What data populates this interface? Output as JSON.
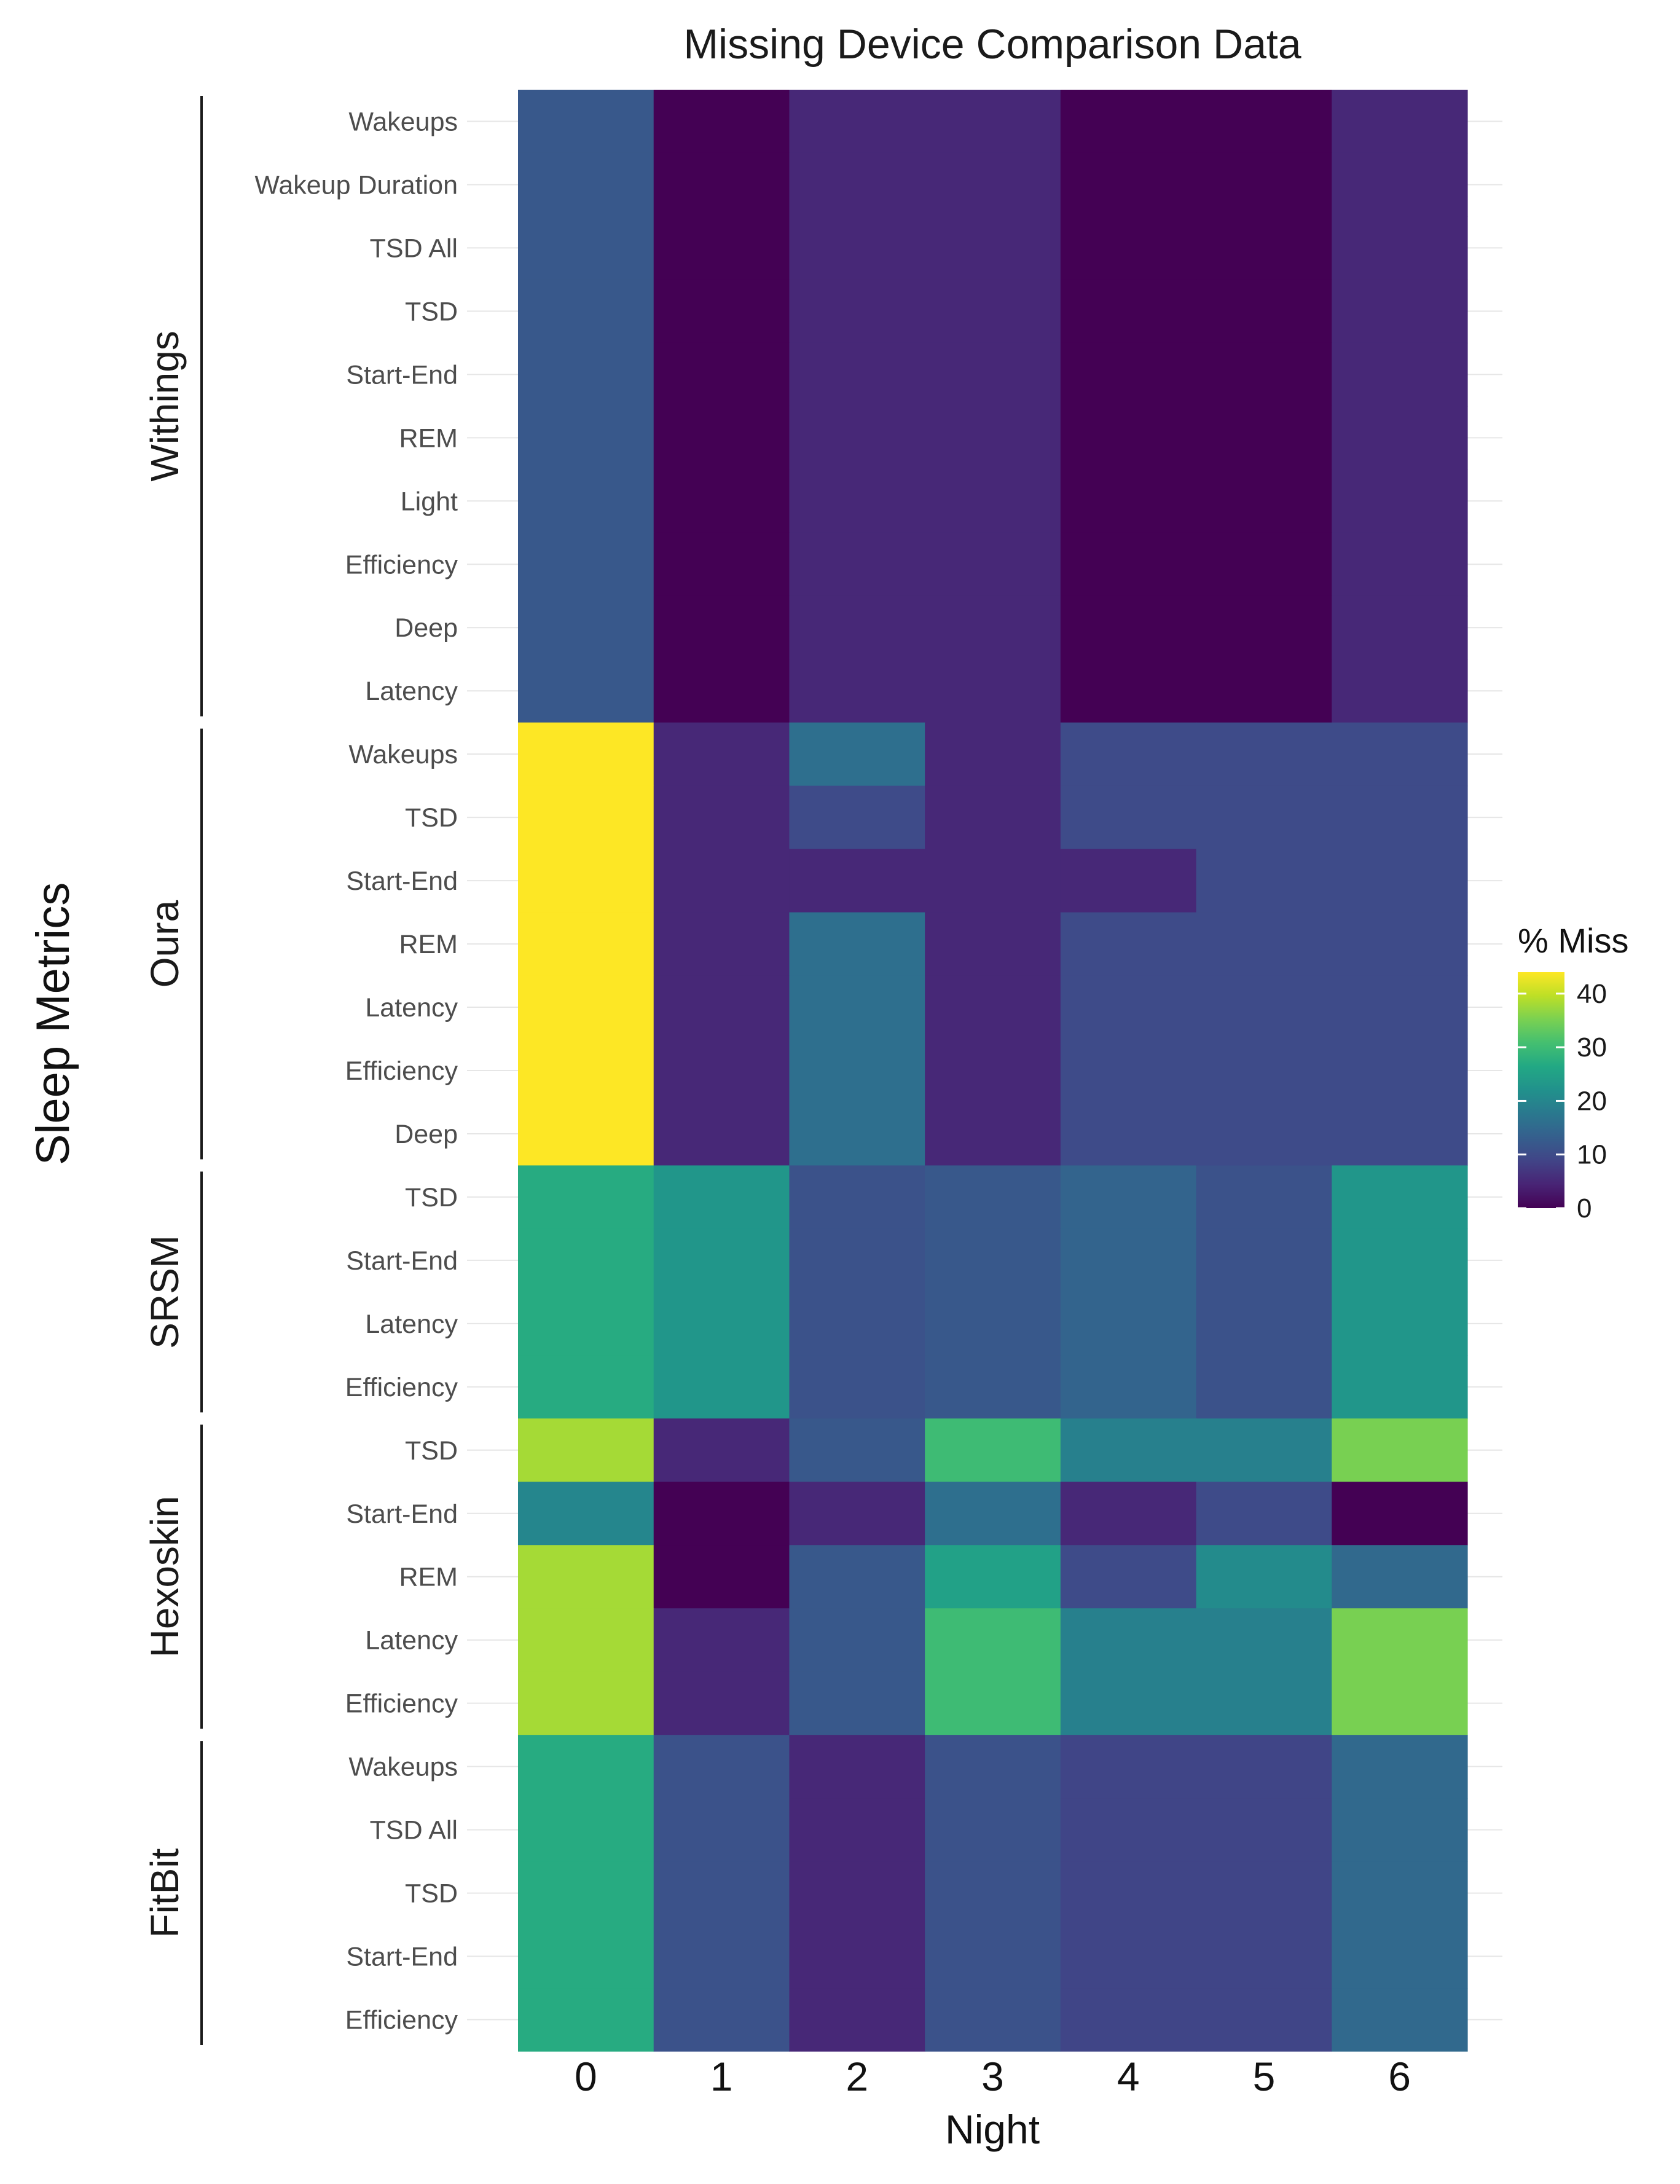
{
  "chart_data": {
    "type": "heatmap",
    "title": "Missing Device Comparison Data",
    "xlabel": "Night",
    "ylabel": "Sleep Metrics",
    "x_categories": [
      "0",
      "1",
      "2",
      "3",
      "4",
      "5",
      "6"
    ],
    "legend": {
      "title": "% Miss",
      "ticks": [
        0,
        10,
        20,
        30,
        40
      ],
      "range": [
        0,
        44
      ],
      "colorscale": "viridis",
      "position": "right"
    },
    "groups": [
      {
        "name": "Withings",
        "rows": [
          {
            "label": "Wakeups",
            "values": [
              12,
              0,
              5,
              5,
              0,
              0,
              5
            ]
          },
          {
            "label": "Wakeup Duration",
            "values": [
              12,
              0,
              5,
              5,
              0,
              0,
              5
            ]
          },
          {
            "label": "TSD All",
            "values": [
              12,
              0,
              5,
              5,
              0,
              0,
              5
            ]
          },
          {
            "label": "TSD",
            "values": [
              12,
              0,
              5,
              5,
              0,
              0,
              5
            ]
          },
          {
            "label": "Start-End",
            "values": [
              12,
              0,
              5,
              5,
              0,
              0,
              5
            ]
          },
          {
            "label": "REM",
            "values": [
              12,
              0,
              5,
              5,
              0,
              0,
              5
            ]
          },
          {
            "label": "Light",
            "values": [
              12,
              0,
              5,
              5,
              0,
              0,
              5
            ]
          },
          {
            "label": "Efficiency",
            "values": [
              12,
              0,
              5,
              5,
              0,
              0,
              5
            ]
          },
          {
            "label": "Deep",
            "values": [
              12,
              0,
              5,
              5,
              0,
              0,
              5
            ]
          },
          {
            "label": "Latency",
            "values": [
              12,
              0,
              5,
              5,
              0,
              0,
              5
            ]
          }
        ]
      },
      {
        "name": "Oura",
        "rows": [
          {
            "label": "Wakeups",
            "values": [
              44,
              5,
              16,
              5,
              10,
              10,
              10
            ]
          },
          {
            "label": "TSD",
            "values": [
              44,
              5,
              10,
              5,
              10,
              10,
              10
            ]
          },
          {
            "label": "Start-End",
            "values": [
              44,
              5,
              5,
              5,
              5,
              10,
              10
            ]
          },
          {
            "label": "REM",
            "values": [
              44,
              5,
              16,
              5,
              10,
              10,
              10
            ]
          },
          {
            "label": "Latency",
            "values": [
              44,
              5,
              16,
              5,
              10,
              10,
              10
            ]
          },
          {
            "label": "Efficiency",
            "values": [
              44,
              5,
              16,
              5,
              10,
              10,
              10
            ]
          },
          {
            "label": "Deep",
            "values": [
              44,
              5,
              16,
              5,
              10,
              10,
              10
            ]
          }
        ]
      },
      {
        "name": "SRSM",
        "rows": [
          {
            "label": "TSD",
            "values": [
              27,
              23,
              11,
              12,
              14,
              11,
              23
            ]
          },
          {
            "label": "Start-End",
            "values": [
              27,
              23,
              11,
              12,
              14,
              11,
              23
            ]
          },
          {
            "label": "Latency",
            "values": [
              27,
              23,
              11,
              12,
              14,
              11,
              23
            ]
          },
          {
            "label": "Efficiency",
            "values": [
              27,
              23,
              11,
              12,
              14,
              11,
              23
            ]
          }
        ]
      },
      {
        "name": "Hexoskin",
        "rows": [
          {
            "label": "TSD",
            "values": [
              38,
              5,
              12,
              30,
              19,
              19,
              35
            ]
          },
          {
            "label": "Start-End",
            "values": [
              20,
              0,
              5,
              16,
              5,
              10,
              0
            ]
          },
          {
            "label": "REM",
            "values": [
              38,
              0,
              12,
              25,
              10,
              21,
              15
            ]
          },
          {
            "label": "Latency",
            "values": [
              38,
              5,
              12,
              30,
              19,
              19,
              35
            ]
          },
          {
            "label": "Efficiency",
            "values": [
              38,
              5,
              12,
              30,
              19,
              19,
              35
            ]
          }
        ]
      },
      {
        "name": "FitBit",
        "rows": [
          {
            "label": "Wakeups",
            "values": [
              27,
              11,
              5,
              11,
              9,
              9,
              15
            ]
          },
          {
            "label": "TSD All",
            "values": [
              27,
              11,
              5,
              11,
              9,
              9,
              15
            ]
          },
          {
            "label": "TSD",
            "values": [
              27,
              11,
              5,
              11,
              9,
              9,
              15
            ]
          },
          {
            "label": "Start-End",
            "values": [
              27,
              11,
              5,
              11,
              9,
              9,
              15
            ]
          },
          {
            "label": "Efficiency",
            "values": [
              27,
              11,
              5,
              11,
              9,
              9,
              15
            ]
          }
        ]
      }
    ]
  }
}
